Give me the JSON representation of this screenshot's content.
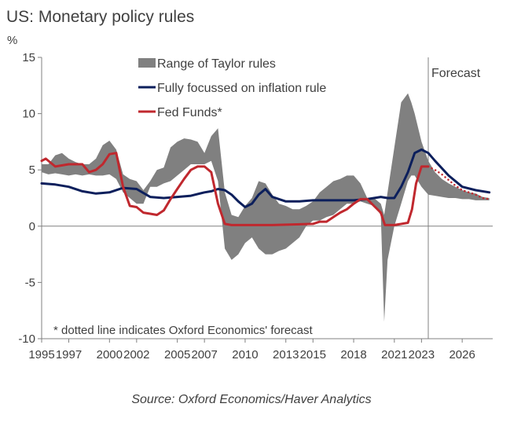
{
  "chart_data": {
    "type": "line",
    "title": "US: Monetary policy rules",
    "ylabel": "%",
    "xlabel": "",
    "ylim": [
      -10,
      15
    ],
    "xlim": [
      1995,
      2028.25
    ],
    "yticks": [
      15,
      10,
      5,
      0,
      -5,
      -10
    ],
    "xticks": [
      "1995",
      "1997",
      "2000",
      "2002",
      "2005",
      "2007",
      "2010",
      "2013",
      "2015",
      "2018",
      "2021",
      "2023",
      "2026"
    ],
    "xtick_values": [
      1995,
      1997,
      2000,
      2002,
      2005,
      2007,
      2010,
      2013,
      2015,
      2018,
      2021,
      2023,
      2026
    ],
    "forecast_start": 2023.5,
    "forecast_label": "Forecast",
    "legend_position": "top-center",
    "grid": false,
    "colors": {
      "range": "#808080",
      "inflation_rule": "#0c1f5c",
      "fed_funds": "#c0282e",
      "axis": "#808080"
    },
    "series": [
      {
        "name": "Range of Taylor rules",
        "kind": "band",
        "x": [
          1995,
          1995.5,
          1996,
          1996.5,
          1997,
          1997.5,
          1998,
          1998.5,
          1999,
          1999.5,
          2000,
          2000.5,
          2001,
          2001.5,
          2002,
          2002.5,
          2003,
          2003.5,
          2004,
          2004.5,
          2005,
          2005.5,
          2006,
          2006.5,
          2007,
          2007.5,
          2008,
          2008.5,
          2009,
          2009.5,
          2010,
          2010.5,
          2011,
          2011.5,
          2012,
          2012.5,
          2013,
          2013.5,
          2014,
          2014.5,
          2015,
          2015.5,
          2016,
          2016.5,
          2017,
          2017.5,
          2018,
          2018.5,
          2019,
          2019.5,
          2020,
          2020.25,
          2020.5,
          2021,
          2021.5,
          2022,
          2022.25,
          2022.5,
          2023,
          2023.5,
          2024,
          2024.5,
          2025,
          2025.5,
          2026,
          2026.5,
          2027,
          2027.5,
          2028
        ],
        "upper": [
          5.5,
          5.5,
          6.3,
          6.5,
          6.0,
          5.7,
          5.5,
          5.5,
          6.0,
          7.2,
          7.6,
          6.8,
          4.6,
          4.2,
          4.0,
          3.2,
          4.0,
          5.0,
          5.2,
          7.0,
          7.5,
          7.8,
          7.7,
          7.5,
          6.5,
          8.0,
          8.7,
          3.0,
          1.0,
          0.8,
          1.8,
          2.5,
          4.0,
          3.8,
          2.8,
          2.0,
          1.8,
          1.5,
          1.5,
          1.8,
          2.2,
          3.0,
          3.5,
          4.0,
          4.2,
          4.5,
          4.5,
          3.8,
          2.5,
          2.5,
          2.0,
          1.0,
          3.0,
          7.0,
          11.0,
          11.8,
          11.0,
          10.0,
          7.5,
          5.8,
          4.8,
          4.2,
          3.8,
          3.5,
          3.2,
          3.0,
          2.9,
          2.6,
          2.5
        ],
        "lower": [
          4.8,
          4.6,
          4.7,
          4.6,
          4.5,
          4.6,
          4.5,
          4.6,
          4.5,
          4.5,
          4.6,
          4.2,
          3.0,
          2.5,
          2.0,
          2.0,
          3.5,
          3.5,
          3.8,
          4.0,
          4.5,
          5.0,
          5.5,
          5.5,
          5.5,
          5.8,
          4.0,
          -2.0,
          -3.0,
          -2.5,
          -1.5,
          -1.0,
          -2.0,
          -2.5,
          -2.5,
          -2.2,
          -2.0,
          -1.5,
          -1.0,
          0.0,
          0.5,
          0.5,
          0.8,
          1.0,
          1.5,
          2.0,
          2.0,
          2.2,
          2.0,
          1.8,
          1.0,
          -8.5,
          -3.0,
          0.0,
          2.0,
          4.0,
          4.5,
          4.5,
          3.5,
          2.8,
          2.7,
          2.6,
          2.5,
          2.5,
          2.4,
          2.4,
          2.3,
          2.3,
          2.3
        ]
      },
      {
        "name": "Fully focussed on inflation rule",
        "kind": "line",
        "x": [
          1995,
          1996,
          1997,
          1998,
          1999,
          2000,
          2001,
          2002,
          2003,
          2004,
          2005,
          2006,
          2007,
          2007.5,
          2008,
          2008.5,
          2009,
          2009.5,
          2010,
          2010.5,
          2011,
          2011.5,
          2012,
          2013,
          2014,
          2015,
          2016,
          2017,
          2018,
          2019,
          2020,
          2020.5,
          2021,
          2021.5,
          2022,
          2022.5,
          2023,
          2023.5,
          2024,
          2025,
          2026,
          2027,
          2028
        ],
        "values": [
          3.8,
          3.7,
          3.5,
          3.1,
          2.9,
          3.0,
          3.4,
          3.3,
          2.6,
          2.5,
          2.6,
          2.7,
          3.0,
          3.1,
          3.3,
          3.2,
          2.8,
          2.2,
          1.7,
          2.0,
          2.8,
          3.3,
          2.6,
          2.2,
          2.2,
          2.3,
          2.3,
          2.3,
          2.3,
          2.4,
          2.6,
          2.5,
          2.5,
          3.5,
          4.8,
          6.5,
          6.8,
          6.5,
          5.8,
          4.5,
          3.5,
          3.2,
          3.0
        ]
      },
      {
        "name": "Fed Funds*",
        "kind": "line",
        "x": [
          1995,
          1995.3,
          1996,
          1997,
          1998,
          1998.5,
          1999,
          1999.5,
          2000,
          2000.5,
          2001,
          2001.5,
          2002,
          2002.5,
          2003,
          2003.5,
          2004,
          2004.5,
          2005,
          2005.5,
          2006,
          2006.5,
          2007,
          2007.5,
          2008,
          2008.5,
          2009,
          2010,
          2012,
          2015,
          2015.5,
          2016,
          2016.5,
          2017,
          2017.5,
          2018,
          2018.5,
          2019,
          2019.5,
          2020,
          2020.3,
          2021,
          2022,
          2022.3,
          2022.6,
          2023,
          2023.5
        ],
        "values": [
          5.8,
          6.0,
          5.3,
          5.5,
          5.5,
          4.8,
          5.0,
          5.5,
          6.4,
          6.5,
          3.5,
          1.8,
          1.7,
          1.2,
          1.1,
          1.0,
          1.4,
          2.4,
          3.3,
          4.2,
          5.0,
          5.3,
          5.3,
          4.8,
          2.0,
          0.2,
          0.1,
          0.1,
          0.1,
          0.2,
          0.4,
          0.4,
          0.8,
          1.2,
          1.5,
          2.0,
          2.4,
          2.4,
          1.8,
          1.2,
          0.1,
          0.1,
          0.3,
          1.5,
          3.8,
          5.3,
          5.3
        ]
      },
      {
        "name": "Fed Funds* forecast",
        "kind": "dotted",
        "x": [
          2023.5,
          2024,
          2024.5,
          2025,
          2025.5,
          2026,
          2026.5,
          2027,
          2027.5,
          2028
        ],
        "values": [
          5.3,
          5.0,
          4.6,
          4.1,
          3.6,
          3.2,
          3.0,
          2.8,
          2.5,
          2.4
        ]
      }
    ],
    "legend": [
      {
        "label": "Range of Taylor rules",
        "symbol": "box",
        "color": "#808080"
      },
      {
        "label": "Fully focussed on inflation rule",
        "symbol": "line",
        "color": "#0c1f5c"
      },
      {
        "label": "Fed Funds*",
        "symbol": "line",
        "color": "#c0282e"
      }
    ],
    "annotation": "* dotted line indicates Oxford Economics' forecast",
    "source": "Source: Oxford Economics/Haver Analytics"
  }
}
